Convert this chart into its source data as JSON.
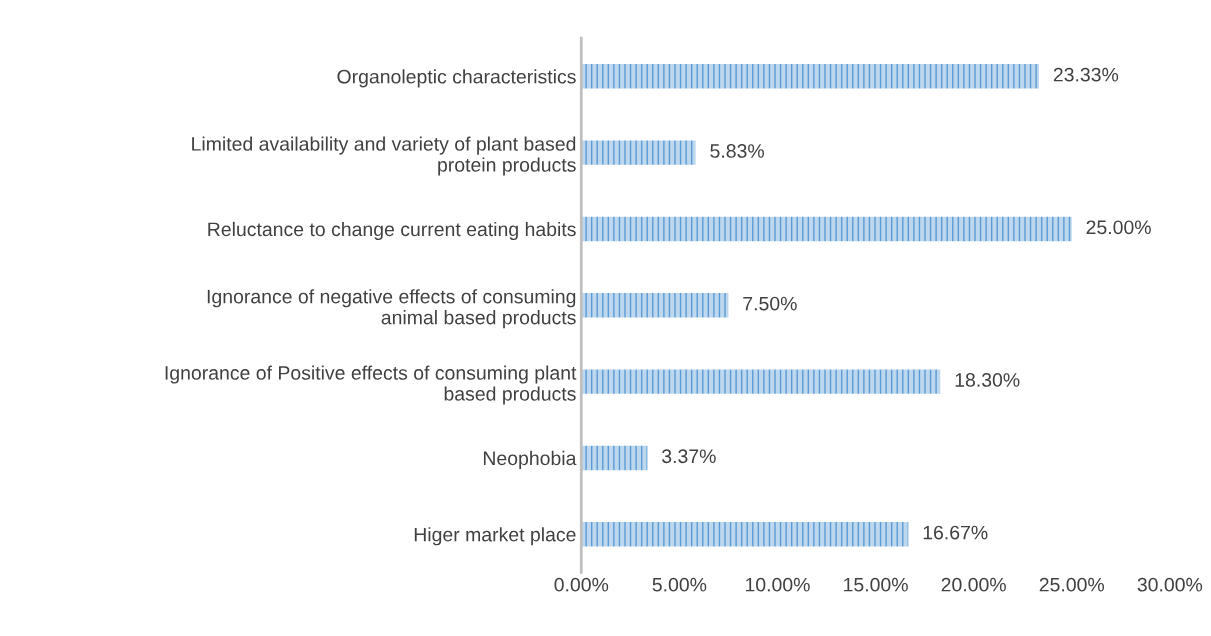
{
  "chart_data": {
    "type": "bar",
    "orientation": "horizontal",
    "categories": [
      "Organoleptic characteristics",
      "Limited availability and variety of plant based\nprotein products",
      "Reluctance to change current eating habits",
      "Ignorance of negative effects of consuming\nanimal based products",
      "Ignorance of Positive effects of consuming plant\nbased products",
      "Neophobia",
      "Higer market place"
    ],
    "values": [
      23.33,
      5.83,
      25.0,
      7.5,
      18.3,
      3.37,
      16.67
    ],
    "value_labels": [
      "23.33%",
      "5.83%",
      "25.00%",
      "7.50%",
      "18.30%",
      "3.37%",
      "16.67%"
    ],
    "color": "#5b9bd5",
    "xlim": [
      0,
      30
    ],
    "xticks": [
      {
        "value": 0,
        "label": "0.00%"
      },
      {
        "value": 5,
        "label": "5.00%"
      },
      {
        "value": 10,
        "label": "10.00%"
      },
      {
        "value": 15,
        "label": "15.00%"
      },
      {
        "value": 20,
        "label": "20.00%"
      },
      {
        "value": 25,
        "label": "25.00%"
      },
      {
        "value": 30,
        "label": "30.00%"
      }
    ],
    "grid": false,
    "legend": false
  }
}
